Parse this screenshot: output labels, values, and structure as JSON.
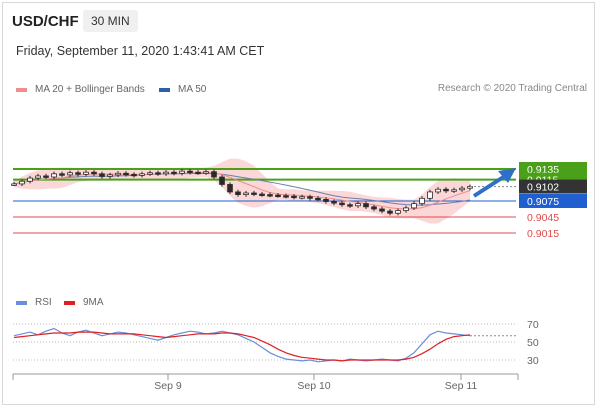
{
  "header": {
    "symbol": "USD/CHF",
    "timeframe": "30 MIN",
    "datetime": "Friday, September 11, 2020 1:43:41 AM CET",
    "credit": "Research © 2020 Trading Central"
  },
  "legend_top": [
    {
      "label": "MA 20 + Bollinger Bands",
      "color": "#f08c8c"
    },
    {
      "label": "MA 50",
      "color": "#2e5fa8"
    }
  ],
  "legend_bottom": [
    {
      "label": "RSI",
      "color": "#6a8fd8"
    },
    {
      "label": "9MA",
      "color": "#e02020"
    }
  ],
  "colors": {
    "resistance": "#4aa018",
    "pivot": "#1f5fd0",
    "support": "#e34b4b",
    "current": "#333333",
    "bollinger": "#fbd3d3",
    "ma20": "#f08c8c",
    "ma50": "#6a7fb0",
    "candle": "#2a2a2a",
    "arrow": "#2f6fc8"
  },
  "chart_data": [
    {
      "type": "line",
      "title": "USD/CHF 30 MIN",
      "y_range": [
        0.9,
        0.9165
      ],
      "x_ticks": [
        "Sep 9",
        "Sep 10",
        "Sep 11"
      ],
      "levels": [
        {
          "value": 0.9135,
          "label": "0.9135",
          "kind": "resistance"
        },
        {
          "value": 0.9115,
          "label": "0.9115",
          "kind": "resistance"
        },
        {
          "value": 0.9102,
          "label": "0.9102",
          "kind": "current"
        },
        {
          "value": 0.9075,
          "label": "0.9075",
          "kind": "pivot"
        },
        {
          "value": 0.9045,
          "label": "0.9045",
          "kind": "support"
        },
        {
          "value": 0.9015,
          "label": "0.9015",
          "kind": "support"
        }
      ],
      "price_path": [
        0.9107,
        0.9112,
        0.9118,
        0.9122,
        0.912,
        0.9126,
        0.9124,
        0.9128,
        0.9125,
        0.9129,
        0.9126,
        0.9121,
        0.9124,
        0.9127,
        0.9125,
        0.9123,
        0.9126,
        0.9128,
        0.9126,
        0.9129,
        0.9127,
        0.9131,
        0.9129,
        0.9128,
        0.913,
        0.912,
        0.9106,
        0.9092,
        0.9087,
        0.909,
        0.9088,
        0.9087,
        0.9086,
        0.9085,
        0.9084,
        0.9082,
        0.9083,
        0.908,
        0.9078,
        0.9074,
        0.9071,
        0.9068,
        0.9066,
        0.907,
        0.9064,
        0.906,
        0.9056,
        0.9052,
        0.9057,
        0.9062,
        0.907,
        0.908,
        0.9092,
        0.9097,
        0.9094,
        0.9096,
        0.9099,
        0.9102
      ]
    },
    {
      "type": "line",
      "title": "RSI",
      "y_range": [
        18,
        82
      ],
      "y_ticks": [
        70,
        50,
        30
      ],
      "series": [
        {
          "name": "RSI",
          "values": [
            57,
            59,
            61,
            58,
            62,
            65,
            60,
            57,
            61,
            63,
            60,
            57,
            59,
            61,
            60,
            58,
            56,
            54,
            52,
            55,
            58,
            60,
            62,
            61,
            59,
            60,
            62,
            60,
            58,
            54,
            50,
            44,
            38,
            34,
            31,
            30,
            29,
            30,
            28,
            29,
            30,
            29,
            31,
            30,
            29,
            30,
            31,
            30,
            29,
            32,
            38,
            48,
            58,
            62,
            60,
            59,
            58,
            57
          ]
        },
        {
          "name": "9MA",
          "values": [
            55,
            56,
            57,
            58,
            59,
            60,
            60,
            60,
            61,
            61,
            61,
            60,
            59,
            59,
            59,
            59,
            58,
            57,
            56,
            55,
            56,
            57,
            58,
            59,
            59,
            59,
            60,
            60,
            59,
            57,
            55,
            51,
            47,
            42,
            38,
            35,
            33,
            32,
            31,
            30,
            30,
            29,
            30,
            30,
            30,
            30,
            30,
            30,
            30,
            31,
            33,
            37,
            42,
            48,
            53,
            56,
            57,
            58
          ]
        }
      ]
    }
  ]
}
